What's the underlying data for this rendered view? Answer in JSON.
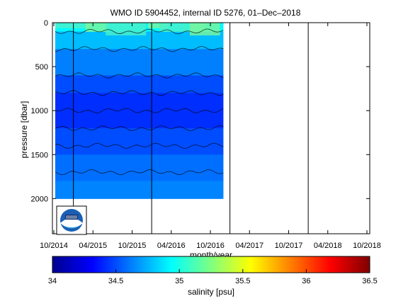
{
  "chart_data": {
    "type": "heatmap",
    "title": "WMO ID 5904452, internal ID 5276, 01–Dec–2018",
    "xlabel": "month/year",
    "ylabel": "pressure [dbar]",
    "x_ticks": [
      "10/2014",
      "04/2015",
      "10/2015",
      "04/2016",
      "10/2016",
      "04/2017",
      "10/2017",
      "04/2018",
      "10/2018"
    ],
    "y_ticks": [
      0,
      500,
      1000,
      1500,
      2000
    ],
    "ylim": [
      2400,
      0
    ],
    "colorbar": {
      "label": "salinity [psu]",
      "ticks": [
        "34",
        "34.5",
        "35",
        "35.5",
        "36",
        "36.5"
      ],
      "range": [
        34,
        36.5
      ],
      "colormap": "jet"
    },
    "data_x_range": [
      "10/2014",
      "12/2016"
    ],
    "data_pressure_max": 2000,
    "profile_rows": [
      {
        "pressure": 0,
        "salinity": 35.0
      },
      {
        "pressure": 100,
        "salinity": 34.85
      },
      {
        "pressure": 300,
        "salinity": 34.7
      },
      {
        "pressure": 600,
        "salinity": 34.55
      },
      {
        "pressure": 800,
        "salinity": 34.45
      },
      {
        "pressure": 1000,
        "salinity": 34.4
      },
      {
        "pressure": 1200,
        "salinity": 34.45
      },
      {
        "pressure": 1500,
        "salinity": 34.55
      },
      {
        "pressure": 1800,
        "salinity": 34.62
      },
      {
        "pressure": 2000,
        "salinity": 34.65
      }
    ],
    "contour_pressures": [
      100,
      300,
      600,
      800,
      1000,
      1200,
      1400,
      1700
    ],
    "year_markers": [
      "01/2015",
      "01/2016",
      "01/2017",
      "01/2018"
    ],
    "grid": false
  },
  "logo": {
    "name": "noaa-logo"
  }
}
